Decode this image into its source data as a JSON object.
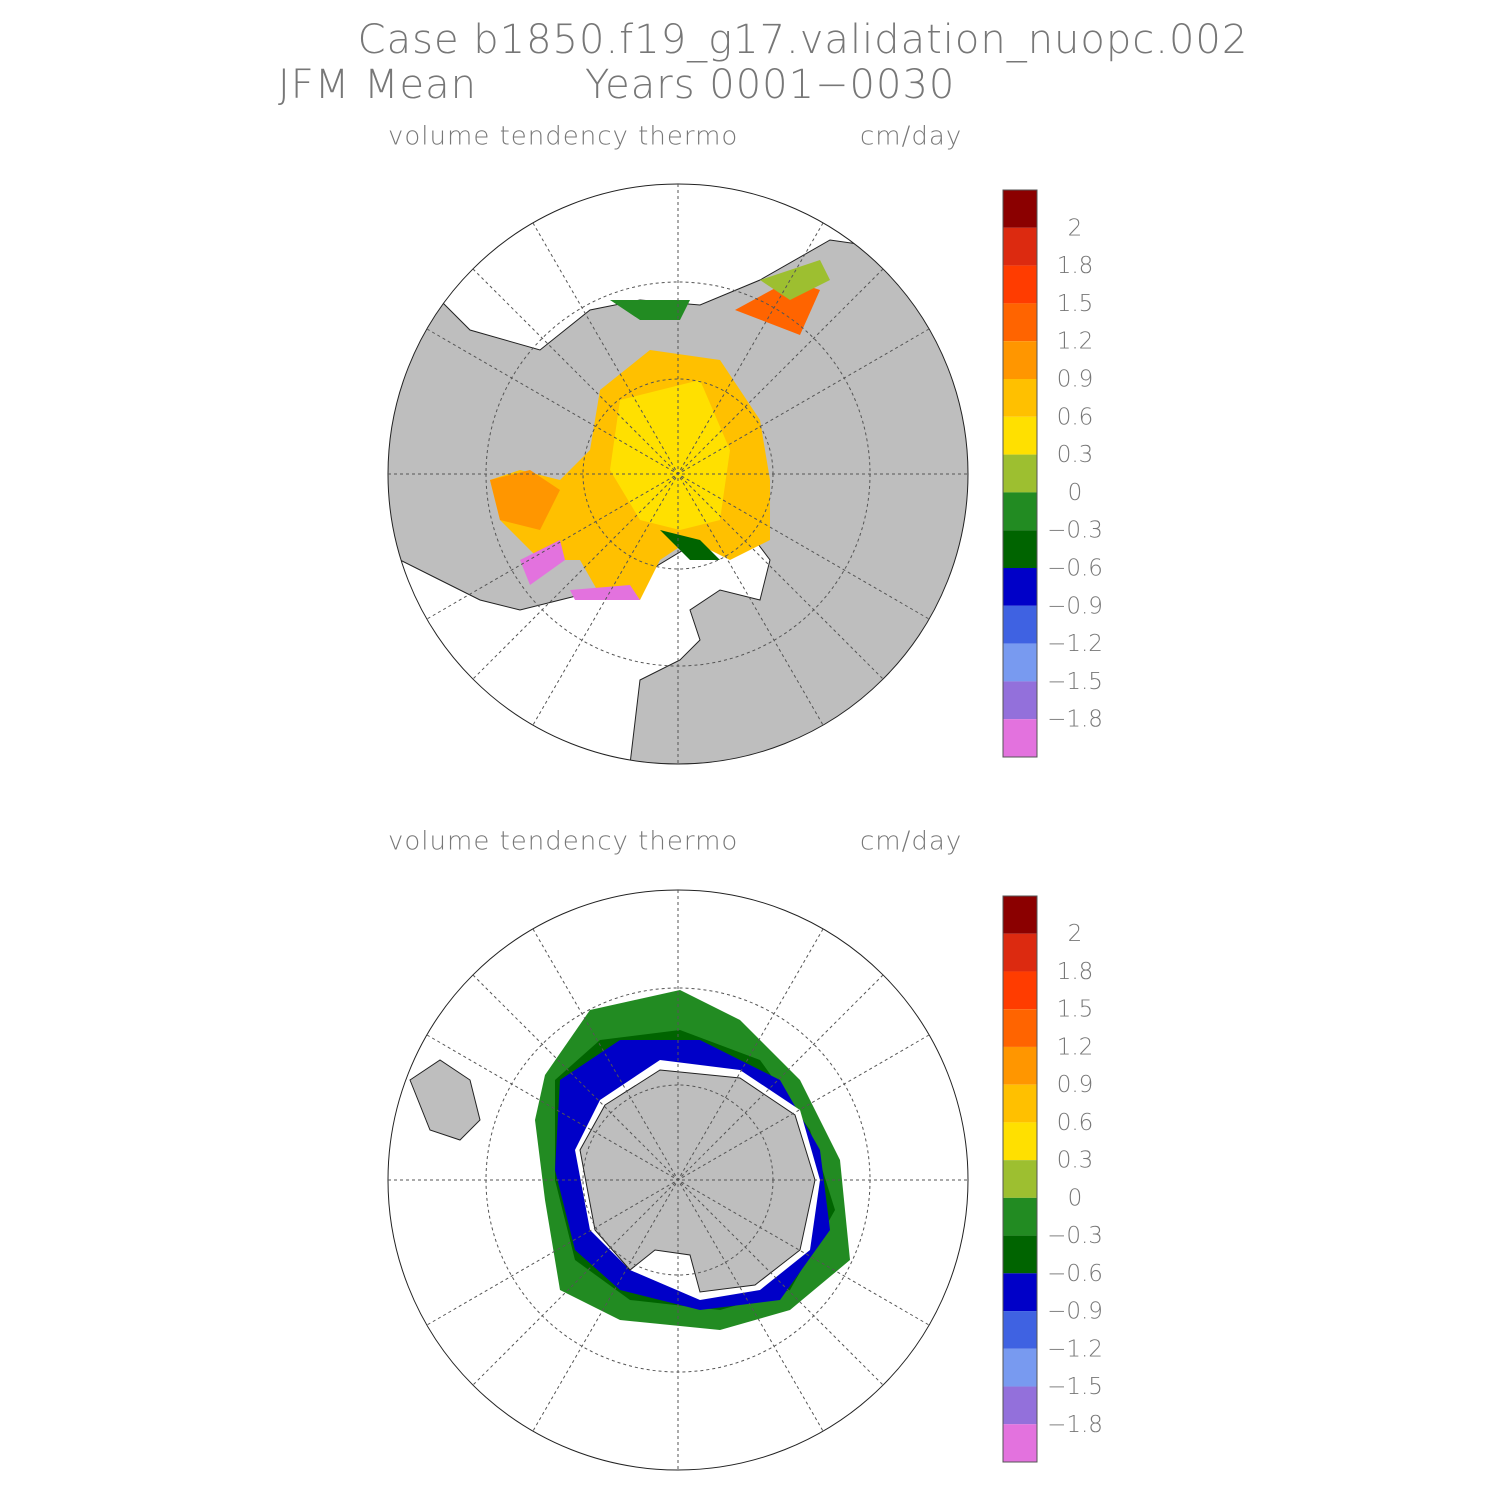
{
  "header": {
    "case": "Case b1850.f19_g17.validation_nuopc.002",
    "season": "JFM Mean",
    "years": "Years 0001−0030"
  },
  "panels": [
    {
      "field": "volume tendency thermo",
      "units": "cm/day"
    },
    {
      "field": "volume tendency thermo",
      "units": "cm/day"
    }
  ],
  "colorbar": {
    "colors": [
      "#8b0000",
      "#dc2a10",
      "#ff3c00",
      "#ff6400",
      "#ff9600",
      "#ffc000",
      "#ffe000",
      "#9dbf30",
      "#228b22",
      "#006400",
      "#0000c8",
      "#3f62e2",
      "#789af0",
      "#9370db",
      "#e372de"
    ],
    "labels": [
      "2",
      "1.8",
      "1.5",
      "1.2",
      "0.9",
      "0.6",
      "0.3",
      "0",
      "−0.3",
      "−0.6",
      "−0.9",
      "−1.2",
      "−1.5",
      "−1.8"
    ]
  }
}
